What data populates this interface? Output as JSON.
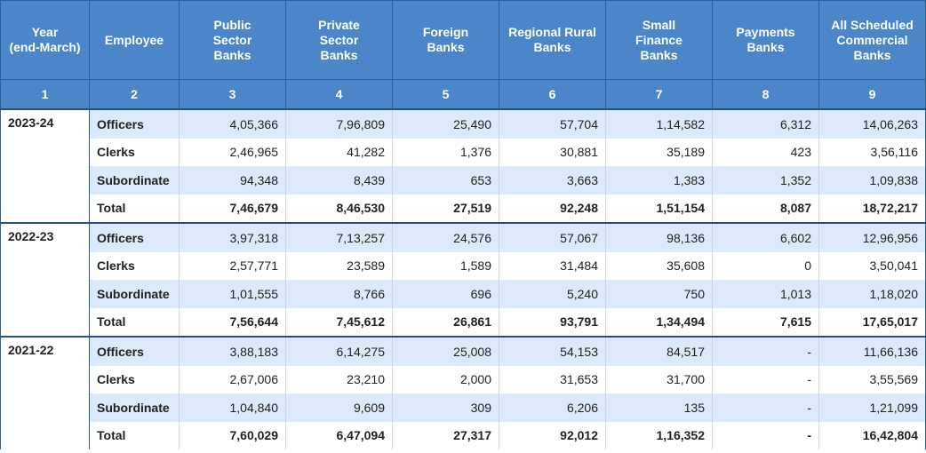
{
  "header": {
    "columns": [
      "Year\n(end-March)",
      "Employee",
      "Public Sector Banks",
      "Private Sector Banks",
      "Foreign Banks",
      "Regional Rural Banks",
      "Small Finance Banks",
      "Payments Banks",
      "All Scheduled Commercial Banks"
    ],
    "numbers": [
      "1",
      "2",
      "3",
      "4",
      "5",
      "6",
      "7",
      "8",
      "9"
    ]
  },
  "groups": [
    {
      "year": "2023-24",
      "rows": [
        {
          "employee": "Officers",
          "values": [
            "4,05,366",
            "7,96,809",
            "25,490",
            "57,704",
            "1,14,582",
            "6,312",
            "14,06,263"
          ]
        },
        {
          "employee": "Clerks",
          "values": [
            "2,46,965",
            "41,282",
            "1,376",
            "30,881",
            "35,189",
            "423",
            "3,56,116"
          ]
        },
        {
          "employee": "Subordinate",
          "values": [
            "94,348",
            "8,439",
            "653",
            "3,663",
            "1,383",
            "1,352",
            "1,09,838"
          ]
        },
        {
          "employee": "Total",
          "values": [
            "7,46,679",
            "8,46,530",
            "27,519",
            "92,248",
            "1,51,154",
            "8,087",
            "18,72,217"
          ]
        }
      ]
    },
    {
      "year": "2022-23",
      "rows": [
        {
          "employee": "Officers",
          "values": [
            "3,97,318",
            "7,13,257",
            "24,576",
            "57,067",
            "98,136",
            "6,602",
            "12,96,956"
          ]
        },
        {
          "employee": "Clerks",
          "values": [
            "2,57,771",
            "23,589",
            "1,589",
            "31,484",
            "35,608",
            "0",
            "3,50,041"
          ]
        },
        {
          "employee": "Subordinate",
          "values": [
            "1,01,555",
            "8,766",
            "696",
            "5,240",
            "750",
            "1,013",
            "1,18,020"
          ]
        },
        {
          "employee": "Total",
          "values": [
            "7,56,644",
            "7,45,612",
            "26,861",
            "93,791",
            "1,34,494",
            "7,615",
            "17,65,017"
          ]
        }
      ]
    },
    {
      "year": "2021-22",
      "rows": [
        {
          "employee": "Officers",
          "values": [
            "3,88,183",
            "6,14,275",
            "25,008",
            "54,153",
            "84,517",
            "-",
            "11,66,136"
          ]
        },
        {
          "employee": "Clerks",
          "values": [
            "2,67,006",
            "23,210",
            "2,000",
            "31,653",
            "31,700",
            "-",
            "3,55,569"
          ]
        },
        {
          "employee": "Subordinate",
          "values": [
            "1,04,840",
            "9,609",
            "309",
            "6,206",
            "135",
            "-",
            "1,21,099"
          ]
        },
        {
          "employee": "Total",
          "values": [
            "7,60,029",
            "6,47,094",
            "27,317",
            "92,012",
            "1,16,352",
            "-",
            "16,42,804"
          ]
        }
      ]
    }
  ]
}
